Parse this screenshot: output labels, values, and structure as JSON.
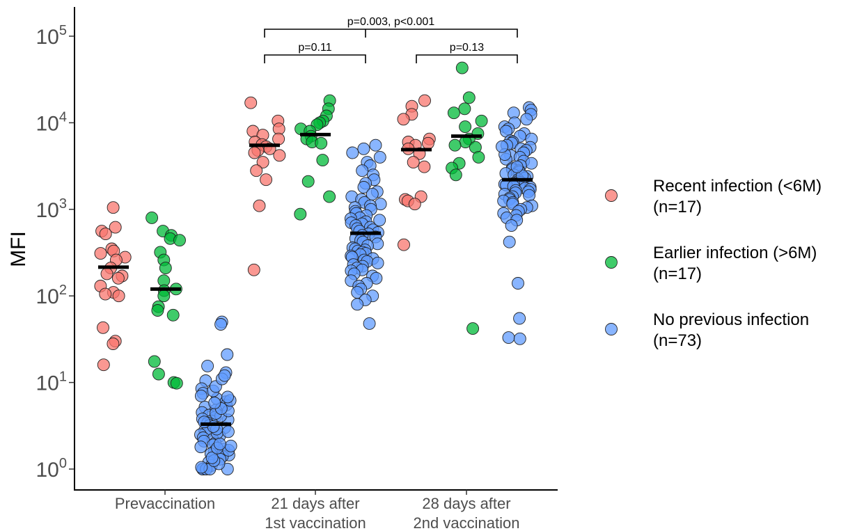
{
  "chart_data": {
    "type": "scatter",
    "ylabel": "MFI",
    "yscale": "log",
    "ylim": [
      1,
      100000
    ],
    "y_ticks": [
      {
        "value": 1,
        "exp": "0"
      },
      {
        "value": 10,
        "exp": "1"
      },
      {
        "value": 100,
        "exp": "2"
      },
      {
        "value": 1000,
        "exp": "3"
      },
      {
        "value": 10000,
        "exp": "4"
      },
      {
        "value": 100000,
        "exp": "5"
      }
    ],
    "tick_base": "10",
    "categories": [
      [
        "Prevaccination"
      ],
      [
        "21 days after",
        "1st vaccination"
      ],
      [
        "28 days after",
        "2nd vaccination"
      ]
    ],
    "legend_position": "right",
    "series": [
      {
        "name_lines": [
          "Recent infection (<6M)",
          " (n=17)"
        ],
        "color": "#F8766D",
        "groups": [
          {
            "median": 215,
            "points": [
              1050,
              620,
              560,
              520,
              350,
              330,
              310,
              280,
              260,
              210,
              180,
              170,
              160,
              130,
              110,
              105,
              100,
              43,
              30,
              28,
              16
            ]
          },
          {
            "median": 5500,
            "points": [
              17000,
              10500,
              8500,
              8000,
              7200,
              6500,
              6000,
              5600,
              5300,
              5000,
              4800,
              4500,
              4200,
              3500,
              2800,
              2200,
              1100,
              200
            ]
          },
          {
            "median": 4900,
            "points": [
              18000,
              15500,
              12500,
              11000,
              6500,
              6000,
              5800,
              5500,
              5000,
              4400,
              3500,
              3100,
              1400,
              1300,
              1250,
              1150,
              390
            ]
          }
        ]
      },
      {
        "name_lines": [
          "Earlier infection (>6M)",
          " (n=17)"
        ],
        "color": "#00BA38",
        "groups": [
          {
            "median": 120,
            "points": [
              800,
              560,
              500,
              460,
              440,
              320,
              260,
              210,
              150,
              120,
              115,
              100,
              75,
              68,
              60,
              17.5,
              12.5,
              10,
              9.8
            ]
          },
          {
            "median": 7300,
            "points": [
              18000,
              14500,
              12000,
              10500,
              10000,
              9500,
              8500,
              8000,
              7000,
              6500,
              6000,
              5800,
              3700,
              2100,
              1400,
              880
            ]
          },
          {
            "median": 7000,
            "points": [
              43000,
              19500,
              14500,
              13000,
              10500,
              9000,
              7500,
              6500,
              6000,
              5500,
              5200,
              4000,
              3400,
              3000,
              2500,
              42
            ]
          }
        ]
      },
      {
        "name_lines": [
          "No previous infection",
          "  (n=73)"
        ],
        "color": "#619CFF",
        "groups": [
          {
            "median": 3.3,
            "points": [
              50,
              47,
              21,
              15.5,
              13,
              10.5,
              8.5,
              7.5,
              7,
              6.5,
              6,
              5.5,
              5.2,
              4.8,
              4.5,
              4.2,
              4,
              3.8,
              3.6,
              3.4,
              3.2,
              3,
              2.8,
              2.6,
              2.5,
              2.4,
              2.3,
              2.2,
              2.1,
              2,
              1.9,
              1.8,
              1.7,
              1.6,
              1.55,
              1.5,
              1.45,
              1.4,
              1.3,
              1.2,
              1.1,
              1,
              1,
              1,
              1,
              1,
              1,
              1.05,
              1.15,
              1.25,
              1.35,
              2.6,
              2.7,
              2.9,
              3.1,
              3.5,
              3.7,
              4.1,
              4.4,
              4.7,
              5,
              5.8,
              6.2,
              6.8,
              8,
              9,
              11,
              12,
              1.65,
              1.75,
              1.85,
              1.95
            ]
          },
          {
            "median": 530,
            "points": [
              5500,
              5000,
              4500,
              4000,
              3500,
              3200,
              2800,
              2500,
              2200,
              2000,
              1800,
              1600,
              1500,
              1400,
              1300,
              1200,
              1150,
              1100,
              1050,
              1000,
              950,
              900,
              850,
              800,
              780,
              750,
              720,
              700,
              680,
              650,
              620,
              600,
              580,
              560,
              540,
              520,
              500,
              480,
              460,
              440,
              420,
              400,
              380,
              360,
              350,
              340,
              330,
              320,
              310,
              300,
              290,
              280,
              270,
              260,
              250,
              240,
              230,
              220,
              210,
              200,
              195,
              180,
              170,
              160,
              150,
              140,
              130,
              120,
              110,
              100,
              90,
              80,
              48
            ]
          },
          {
            "median": 2200,
            "points": [
              15000,
              14000,
              13000,
              12500,
              11000,
              10000,
              9000,
              8500,
              8000,
              7500,
              7000,
              6500,
              6200,
              6000,
              5800,
              5500,
              5200,
              5000,
              4800,
              4500,
              4200,
              4000,
              3800,
              3600,
              3400,
              3200,
              3000,
              2900,
              2800,
              2700,
              2600,
              2500,
              2400,
              2300,
              2200,
              2100,
              2050,
              2000,
              1950,
              1900,
              1850,
              1800,
              1750,
              1700,
              1650,
              1600,
              1550,
              1500,
              1450,
              1400,
              1350,
              1300,
              1250,
              1200,
              1150,
              1100,
              1050,
              1000,
              950,
              900,
              850,
              800,
              750,
              650,
              420,
              140,
              55,
              33,
              32,
              2450,
              3100,
              4300,
              5300
            ]
          }
        ]
      }
    ],
    "annotations": [
      {
        "label": "p=0.11",
        "level": 1,
        "from": [
          1,
          0
        ],
        "to": [
          1,
          2
        ]
      },
      {
        "label": "p=0.13",
        "level": 1,
        "from": [
          2,
          0
        ],
        "to": [
          2,
          2
        ]
      },
      {
        "label": "p=0.003, p<0.001",
        "level": 2,
        "from": [
          1,
          0
        ],
        "to": [
          2,
          2
        ],
        "mid": [
          1,
          2
        ]
      }
    ]
  }
}
